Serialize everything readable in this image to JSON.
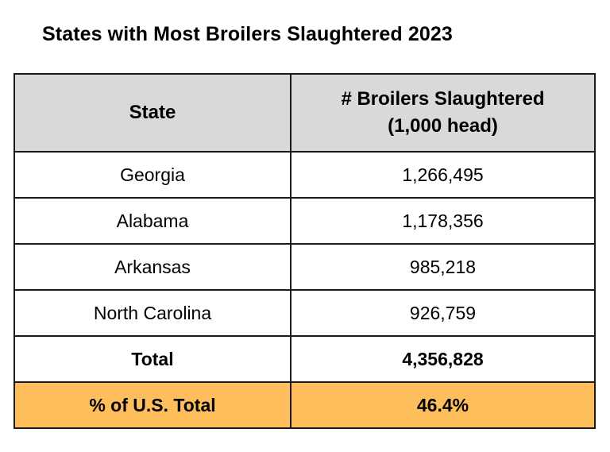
{
  "title": "States with Most Broilers Slaughtered 2023",
  "table": {
    "headers": {
      "state": "State",
      "value_line1": "# Broilers Slaughtered",
      "value_line2": "(1,000 head)"
    },
    "rows": [
      {
        "state": "Georgia",
        "value": "1,266,495"
      },
      {
        "state": "Alabama",
        "value": "1,178,356"
      },
      {
        "state": "Arkansas",
        "value": "985,218"
      },
      {
        "state": "North Carolina",
        "value": "926,759"
      }
    ],
    "total": {
      "label": "Total",
      "value": "4,356,828"
    },
    "percent": {
      "label": "% of U.S. Total",
      "value": "46.4%"
    }
  },
  "colors": {
    "header_bg": "#d9d9d9",
    "highlight_bg": "#ffbe5c",
    "border": "#1a1a1a"
  }
}
